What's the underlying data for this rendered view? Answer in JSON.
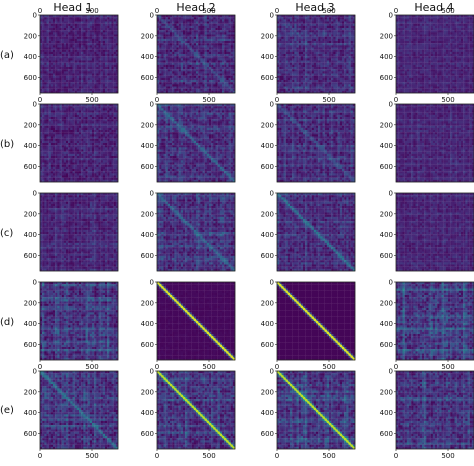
{
  "chart_data": {
    "type": "heatmap",
    "colormap": "viridis",
    "column_titles": [
      "Head 1",
      "Head 2",
      "Head 3",
      "Head 4"
    ],
    "row_labels": [
      "(a)",
      "(b)",
      "(c)",
      "(d)",
      "(e)"
    ],
    "y_ticks": [
      0,
      200,
      400,
      600
    ],
    "x_ticks": [
      0,
      500
    ],
    "xlim": [
      0,
      750
    ],
    "ylim": [
      0,
      750
    ],
    "x_ticks_shown_under_rows": [
      "(a)",
      "(d)",
      "(e)"
    ],
    "panels": [
      [
        {
          "background": 0.08,
          "diagonal": 0.0,
          "texture": 0.06,
          "stripes": 0.08
        },
        {
          "background": 0.1,
          "diagonal": 0.25,
          "texture": 0.09,
          "stripes": 0.14
        },
        {
          "background": 0.1,
          "diagonal": 0.15,
          "texture": 0.08,
          "stripes": 0.12
        },
        {
          "background": 0.09,
          "diagonal": 0.0,
          "texture": 0.05,
          "stripes": 0.06
        }
      ],
      [
        {
          "background": 0.08,
          "diagonal": 0.05,
          "texture": 0.07,
          "stripes": 0.1
        },
        {
          "background": 0.11,
          "diagonal": 0.35,
          "texture": 0.09,
          "stripes": 0.15
        },
        {
          "background": 0.1,
          "diagonal": 0.25,
          "texture": 0.08,
          "stripes": 0.13
        },
        {
          "background": 0.09,
          "diagonal": 0.05,
          "texture": 0.05,
          "stripes": 0.07
        }
      ],
      [
        {
          "background": 0.08,
          "diagonal": 0.0,
          "texture": 0.06,
          "stripes": 0.09
        },
        {
          "background": 0.1,
          "diagonal": 0.35,
          "texture": 0.09,
          "stripes": 0.15
        },
        {
          "background": 0.1,
          "diagonal": 0.4,
          "texture": 0.08,
          "stripes": 0.13
        },
        {
          "background": 0.09,
          "diagonal": 0.0,
          "texture": 0.05,
          "stripes": 0.07
        }
      ],
      [
        {
          "background": 0.11,
          "diagonal": 0.1,
          "texture": 0.1,
          "stripes": 0.2
        },
        {
          "background": 0.02,
          "diagonal": 0.95,
          "texture": 0.01,
          "stripes": 0.0
        },
        {
          "background": 0.01,
          "diagonal": 0.95,
          "texture": 0.0,
          "stripes": 0.0
        },
        {
          "background": 0.14,
          "diagonal": 0.0,
          "texture": 0.11,
          "stripes": 0.24
        }
      ],
      [
        {
          "background": 0.12,
          "diagonal": 0.4,
          "texture": 0.1,
          "stripes": 0.16
        },
        {
          "background": 0.12,
          "diagonal": 0.9,
          "texture": 0.1,
          "stripes": 0.18
        },
        {
          "background": 0.12,
          "diagonal": 0.9,
          "texture": 0.1,
          "stripes": 0.18
        },
        {
          "background": 0.12,
          "diagonal": 0.0,
          "texture": 0.1,
          "stripes": 0.18
        }
      ]
    ]
  }
}
